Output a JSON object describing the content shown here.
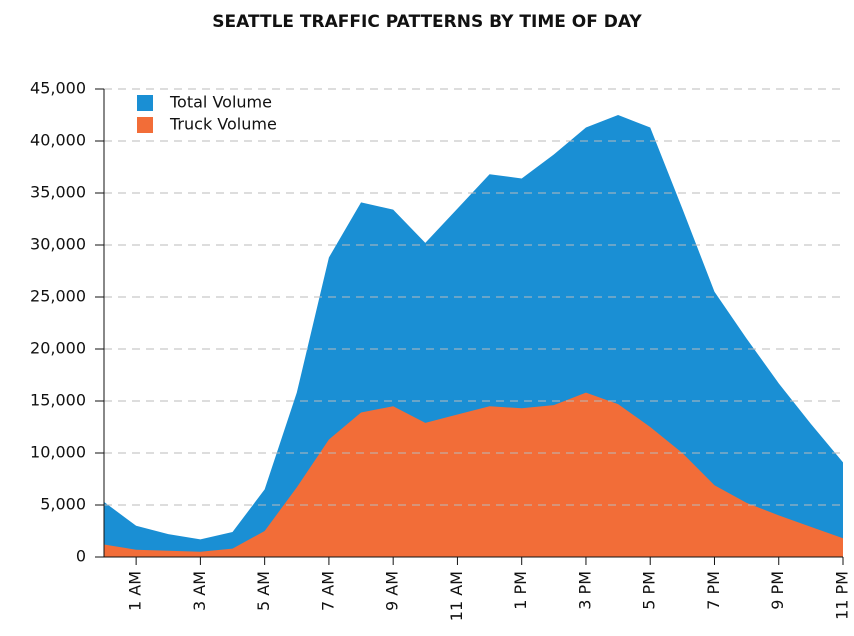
{
  "chart_data": {
    "type": "area",
    "title": "SEATTLE TRAFFIC PATTERNS BY TIME OF DAY",
    "categories": [
      null,
      "1 AM",
      null,
      "3 AM",
      null,
      "5 AM",
      null,
      "7 AM",
      null,
      "9 AM",
      null,
      "11 AM",
      null,
      "1 PM",
      null,
      "3 PM",
      null,
      "5 PM",
      null,
      "7 PM",
      null,
      "9 PM",
      null,
      "11 PM"
    ],
    "series": [
      {
        "name": "Total Volume",
        "color": "#1a8fd4",
        "values": [
          5300,
          3000,
          2200,
          1700,
          2400,
          6500,
          15800,
          28800,
          34100,
          33400,
          30200,
          33500,
          36800,
          36400,
          38700,
          41300,
          42500,
          41300,
          33500,
          25500,
          21000,
          16700,
          12800,
          9100
        ]
      },
      {
        "name": "Truck Volume",
        "color": "#f26d38",
        "values": [
          1200,
          700,
          600,
          500,
          800,
          2500,
          6700,
          11300,
          13900,
          14500,
          12900,
          13700,
          14500,
          14300,
          14600,
          15800,
          14700,
          12500,
          10000,
          6900,
          5200,
          4000,
          2900,
          1800
        ]
      }
    ],
    "ylim": [
      0,
      45000
    ],
    "yticks": [
      0,
      {
        "value": 5000,
        "label": "5,000"
      },
      {
        "value": 10000,
        "label": "10,000"
      },
      {
        "value": 15000,
        "label": "15,000"
      },
      {
        "value": 20000,
        "label": "20,000"
      },
      {
        "value": 25000,
        "label": "25,000"
      },
      {
        "value": 30000,
        "label": "30,000"
      },
      {
        "value": 35000,
        "label": "35,000"
      },
      {
        "value": 40000,
        "label": "40,000"
      },
      {
        "value": 45000,
        "label": "45,000"
      }
    ],
    "grid": true,
    "legend": "top-left"
  }
}
